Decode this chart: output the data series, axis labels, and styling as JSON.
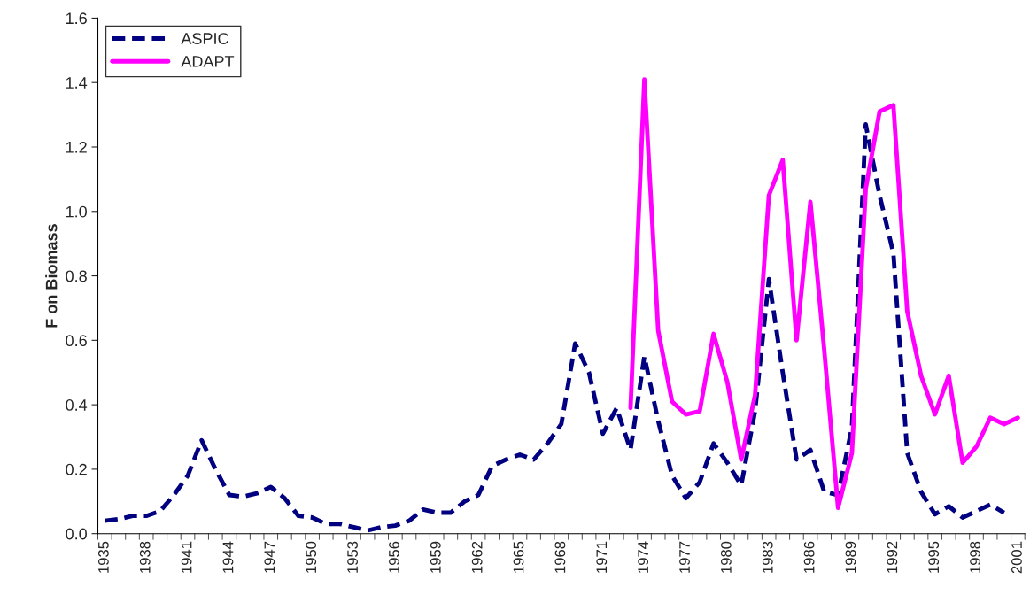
{
  "chart_data": {
    "type": "line",
    "ylabel": "F on Biomass",
    "categories": [
      "1935",
      null,
      null,
      "1938",
      null,
      null,
      "1941",
      null,
      null,
      "1944",
      null,
      null,
      "1947",
      null,
      null,
      "1950",
      null,
      null,
      "1953",
      null,
      null,
      "1956",
      null,
      null,
      "1959",
      null,
      null,
      "1962",
      null,
      null,
      "1965",
      null,
      null,
      "1968",
      null,
      null,
      "1971",
      null,
      null,
      "1974",
      null,
      null,
      "1977",
      null,
      null,
      "1980",
      null,
      null,
      "1983",
      null,
      null,
      "1986",
      null,
      null,
      "1989",
      null,
      null,
      "1992",
      null,
      null,
      "1995",
      null,
      null,
      "1998",
      null,
      null,
      "2001"
    ],
    "series": [
      {
        "name": "ASPIC",
        "color": "#000080",
        "line_style": "dashed",
        "values": [
          0.04,
          0.045,
          0.055,
          0.055,
          0.07,
          0.12,
          0.18,
          0.29,
          0.2,
          0.12,
          0.115,
          0.125,
          0.145,
          0.11,
          0.055,
          0.05,
          0.03,
          0.03,
          0.02,
          0.01,
          0.02,
          0.025,
          0.04,
          0.075,
          0.065,
          0.065,
          0.1,
          0.12,
          0.21,
          0.23,
          0.245,
          0.23,
          0.28,
          0.34,
          0.59,
          0.5,
          0.31,
          0.39,
          0.26,
          0.55,
          0.35,
          0.18,
          0.11,
          0.16,
          0.28,
          0.22,
          0.15,
          0.38,
          0.79,
          0.5,
          0.23,
          0.26,
          0.13,
          0.12,
          0.33,
          1.27,
          1.05,
          0.87,
          0.25,
          0.13,
          0.06,
          0.085,
          0.05,
          0.07,
          0.09,
          0.065,
          null
        ]
      },
      {
        "name": "ADAPT",
        "color": "#ff00ff",
        "line_style": "solid",
        "values": [
          null,
          null,
          null,
          null,
          null,
          null,
          null,
          null,
          null,
          null,
          null,
          null,
          null,
          null,
          null,
          null,
          null,
          null,
          null,
          null,
          null,
          null,
          null,
          null,
          null,
          null,
          null,
          null,
          null,
          null,
          null,
          null,
          null,
          null,
          null,
          null,
          null,
          null,
          0.39,
          1.41,
          0.63,
          0.41,
          0.37,
          0.38,
          0.62,
          0.47,
          0.23,
          0.43,
          1.05,
          1.16,
          0.6,
          1.03,
          0.57,
          0.08,
          0.25,
          1.07,
          1.31,
          1.33,
          0.69,
          0.49,
          0.37,
          0.49,
          0.22,
          0.27,
          0.36,
          0.34,
          0.36
        ]
      }
    ],
    "ylim": [
      0,
      1.6
    ],
    "yticks": [
      {
        "value": 0,
        "label": "0.0"
      },
      {
        "value": 0.2,
        "label": "0.2"
      },
      {
        "value": 0.4,
        "label": "0.4"
      },
      {
        "value": 0.6,
        "label": "0.6"
      },
      {
        "value": 0.8,
        "label": "0.8"
      },
      {
        "value": 1.0,
        "label": "1.0"
      },
      {
        "value": 1.2,
        "label": "1.2"
      },
      {
        "value": 1.4,
        "label": "1.4"
      },
      {
        "value": 1.6,
        "label": "1.6"
      }
    ],
    "grid": false,
    "legend": "top left"
  }
}
